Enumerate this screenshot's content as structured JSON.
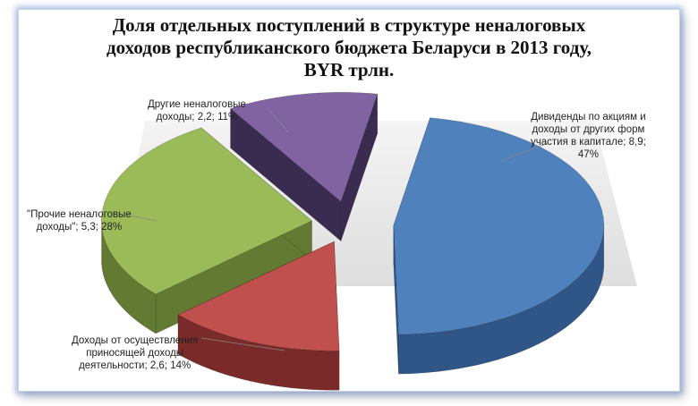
{
  "title_lines": [
    "Доля отдельных поступлений в структуре неналоговых",
    "доходов республиканского бюджета Беларуси в 2013 году,",
    "BYR трлн."
  ],
  "chart_data": {
    "type": "pie",
    "style": "3d-exploded",
    "title": "Доля отдельных поступлений в структуре неналоговых доходов республиканского бюджета Беларуси в 2013 году, BYR трлн.",
    "slices": [
      {
        "label_lines": [
          "Дивиденды по акциям и",
          "доходы от других форм",
          "участия в капитале; 8,9;",
          "47%"
        ],
        "value": 8.9,
        "percent": 47,
        "color": "#4f81bd",
        "side": "#2f5687"
      },
      {
        "label_lines": [
          "Доходы от осуществления",
          "приносящей доходы",
          "деятельности; 2,6; 14%"
        ],
        "value": 2.6,
        "percent": 14,
        "color": "#c0504d",
        "side": "#7a2a28"
      },
      {
        "label_lines": [
          "\"Прочие неналоговые",
          "доходы\"; 5,3; 28%"
        ],
        "value": 5.3,
        "percent": 28,
        "color": "#9bbb59",
        "side": "#637a33"
      },
      {
        "label_lines": [
          "Другие неналоговые",
          "доходы; 2,2; 11%"
        ],
        "value": 2.2,
        "percent": 11,
        "color": "#8064a2",
        "side": "#3a2b50"
      }
    ],
    "legend": "none",
    "data_labels": "outside-with-leader-lines"
  }
}
